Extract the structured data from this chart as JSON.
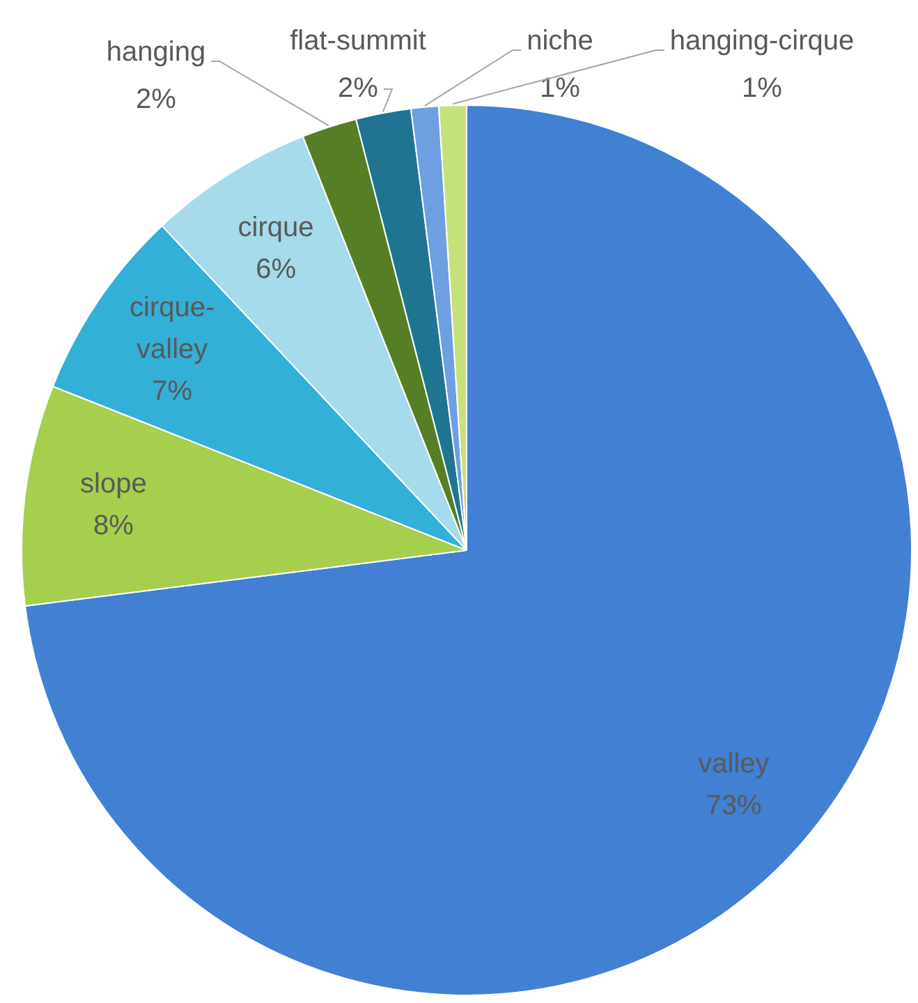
{
  "chart_data": {
    "type": "pie",
    "categories": [
      "valley",
      "slope",
      "cirque-valley",
      "cirque",
      "hanging",
      "flat-summit",
      "niche",
      "hanging-cirque"
    ],
    "values": [
      73,
      8,
      7,
      6,
      2,
      2,
      1,
      1
    ],
    "colors": [
      "#4180d3",
      "#a5cf4c",
      "#33b0d8",
      "#a5dbea",
      "#567f25",
      "#1f7591",
      "#6e9fe0",
      "#c5e27a"
    ],
    "value_labels": [
      "73%",
      "8%",
      "7%",
      "6%",
      "2%",
      "2%",
      "1%",
      "1%"
    ]
  }
}
